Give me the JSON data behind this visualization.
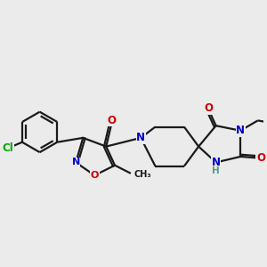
{
  "bg_color": "#ebebeb",
  "bond_color": "#1a1a1a",
  "bond_width": 1.6,
  "atom_colors": {
    "C": "#1a1a1a",
    "N": "#0000cc",
    "O": "#cc0000",
    "Cl": "#00aa00",
    "H": "#5a9a8a"
  },
  "font_size_atom": 8.5,
  "font_size_small": 7.5
}
